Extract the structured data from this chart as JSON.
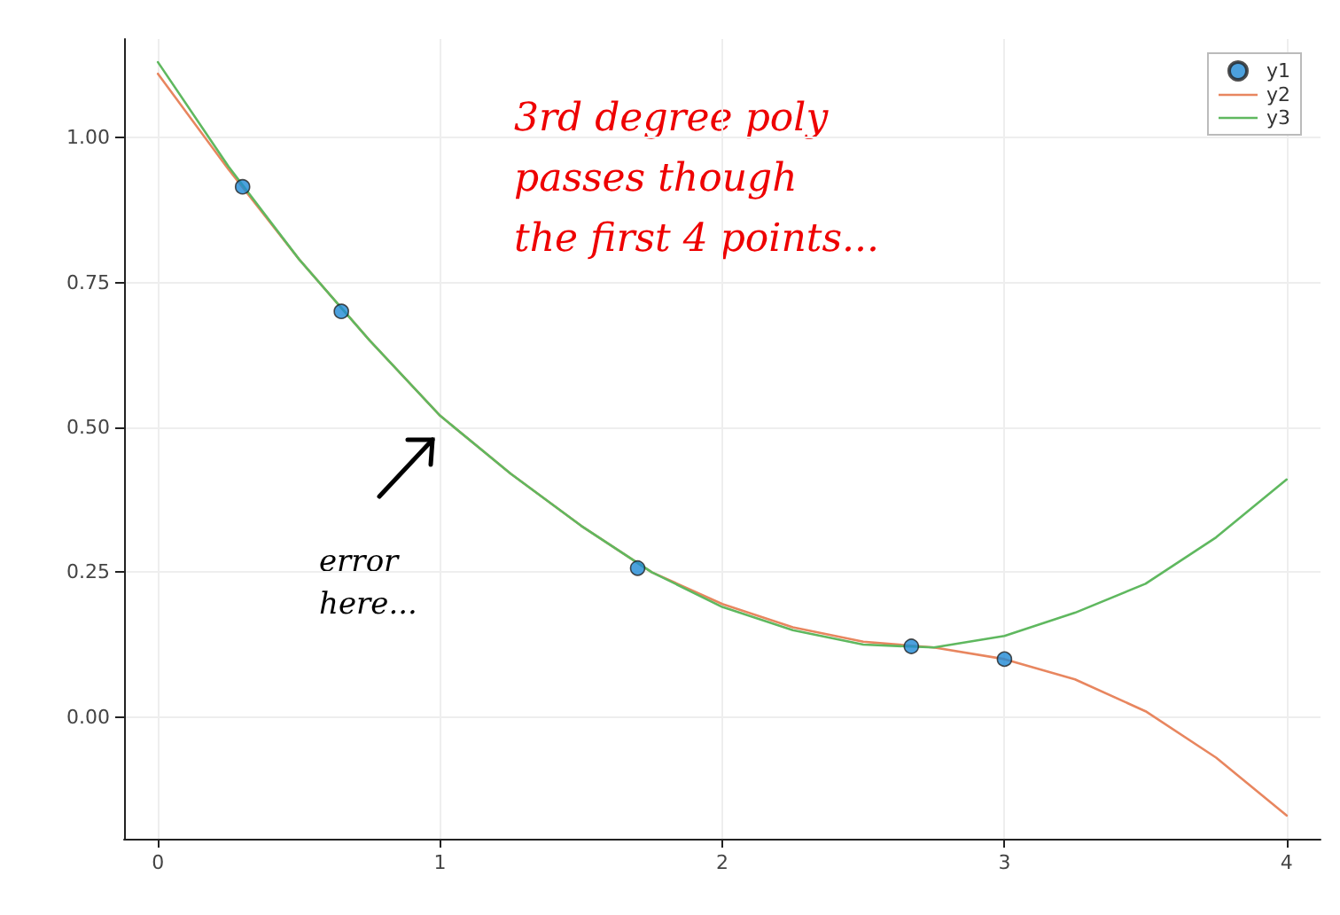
{
  "chart_data": {
    "type": "line",
    "annotations": [
      "3rd degree poly\npasses though\nthe first 4 points...",
      "error\nhere..."
    ],
    "xlim": [
      -0.12,
      4.12
    ],
    "xticks": [
      0,
      1,
      2,
      3,
      4
    ],
    "ylim": [
      -0.21,
      1.17
    ],
    "yticks": [
      {
        "value": 0,
        "label": "0.00"
      },
      {
        "value": 0.25,
        "label": "0.25"
      },
      {
        "value": 0.5,
        "label": "0.50"
      },
      {
        "value": 0.75,
        "label": "0.75"
      },
      {
        "value": 1,
        "label": "1.00"
      }
    ],
    "grid": true,
    "legend": "top right",
    "series": [
      {
        "name": "y1",
        "type": "scatter",
        "marker": "circle",
        "color": "#1f8ad6",
        "x": [
          0.3,
          0.65,
          1.7,
          2.67,
          3.0
        ],
        "values": [
          0.915,
          0.7,
          0.257,
          0.122,
          0.1
        ]
      },
      {
        "name": "y2",
        "marker": "none",
        "color": "#e8865f",
        "x": [
          0,
          0.25,
          0.5,
          0.75,
          1,
          1.25,
          1.5,
          1.75,
          2,
          2.25,
          2.5,
          2.75,
          3,
          3.25,
          3.5,
          3.75,
          4
        ],
        "values": [
          1.11,
          0.945,
          0.79,
          0.65,
          0.52,
          0.42,
          0.33,
          0.25,
          0.195,
          0.155,
          0.13,
          0.12,
          0.1,
          0.065,
          0.01,
          -0.07,
          -0.17
        ]
      },
      {
        "name": "y3",
        "marker": "none",
        "color": "#5fb85f",
        "x": [
          0,
          0.25,
          0.5,
          0.75,
          1,
          1.25,
          1.5,
          1.75,
          2,
          2.25,
          2.5,
          2.75,
          3,
          3.25,
          3.5,
          3.75,
          4
        ],
        "values": [
          1.13,
          0.95,
          0.79,
          0.65,
          0.52,
          0.42,
          0.33,
          0.25,
          0.19,
          0.15,
          0.125,
          0.12,
          0.14,
          0.18,
          0.23,
          0.31,
          0.41
        ]
      }
    ]
  }
}
